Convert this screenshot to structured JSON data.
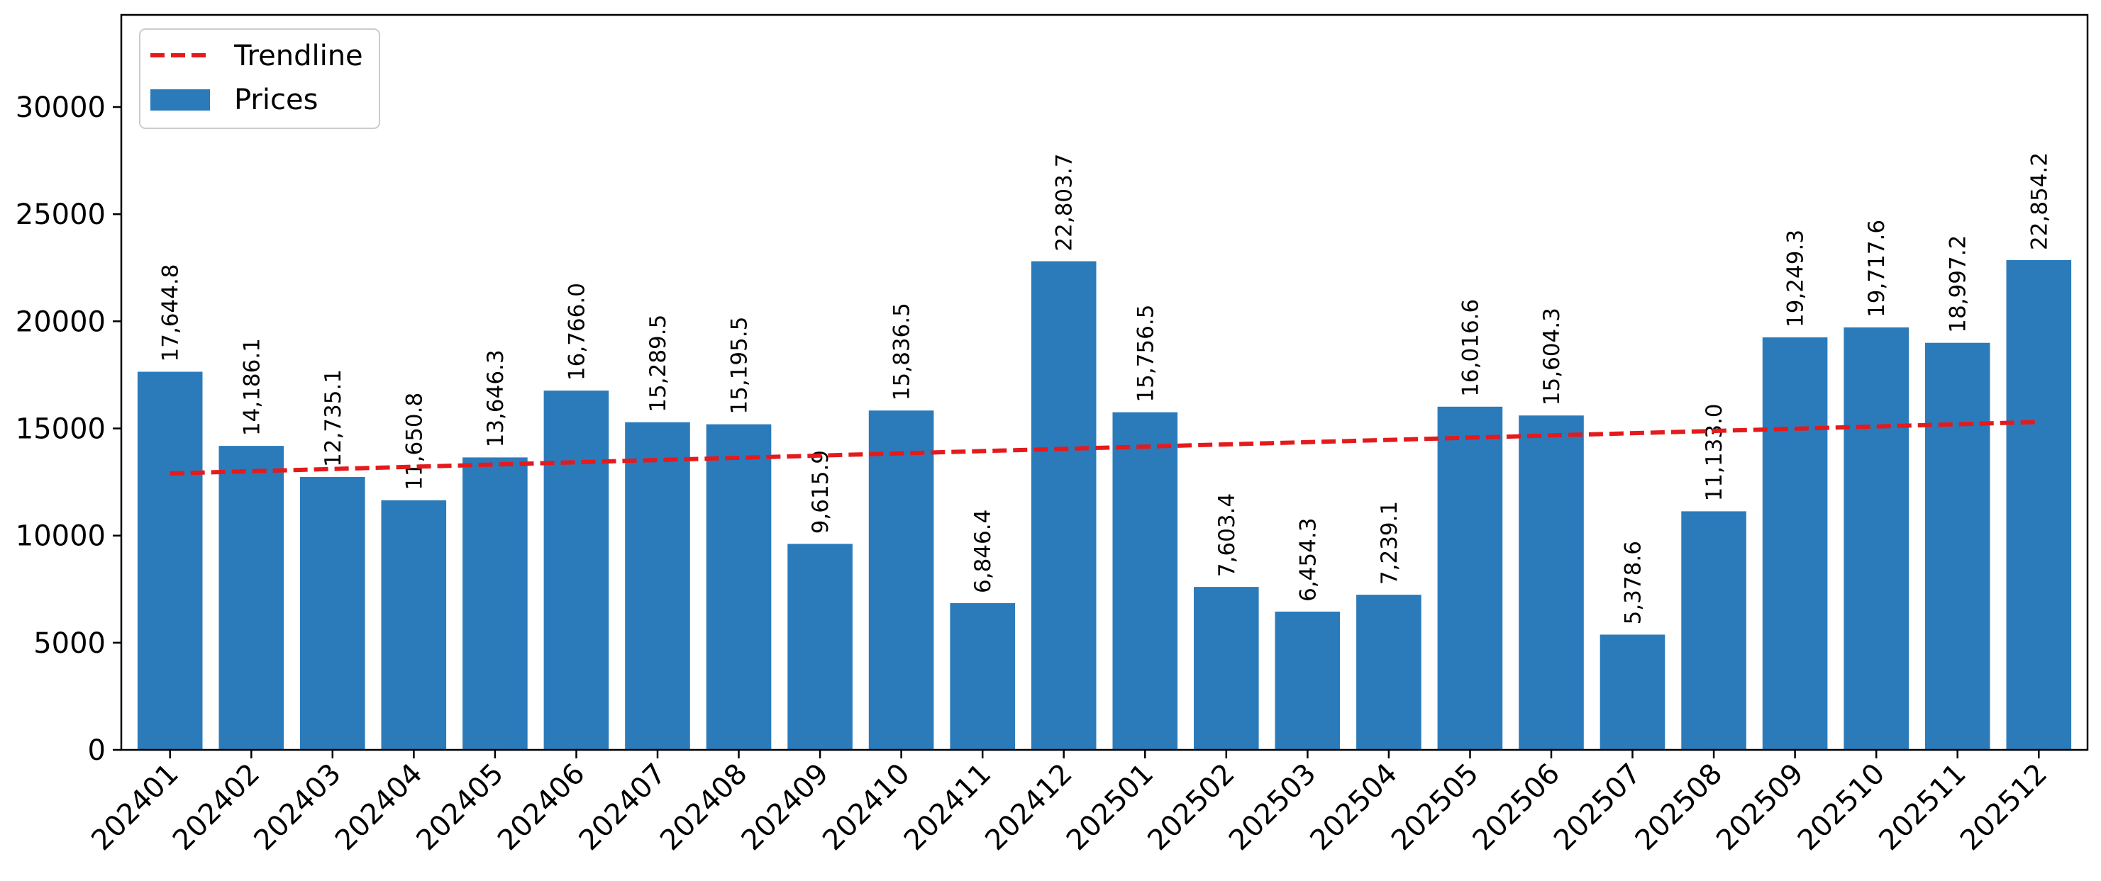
{
  "chart_data": {
    "type": "bar",
    "title": "",
    "xlabel": "",
    "ylabel": "",
    "categories": [
      "202401",
      "202402",
      "202403",
      "202404",
      "202405",
      "202406",
      "202407",
      "202408",
      "202409",
      "202410",
      "202411",
      "202412",
      "202501",
      "202502",
      "202503",
      "202504",
      "202505",
      "202506",
      "202507",
      "202508",
      "202509",
      "202510",
      "202511",
      "202512"
    ],
    "series": [
      {
        "name": "Prices",
        "type": "bar",
        "color": "#2b7bba",
        "values": [
          17644.8,
          14186.1,
          12735.1,
          11650.8,
          13646.3,
          16766.0,
          15289.5,
          15195.5,
          9615.9,
          15836.5,
          6846.4,
          22803.7,
          15756.5,
          7603.4,
          6454.3,
          7239.1,
          16016.6,
          15604.3,
          5378.6,
          11133.0,
          19249.3,
          19717.6,
          18997.2,
          22854.2
        ],
        "value_labels": [
          "17,644.8",
          "14,186.1",
          "12,735.1",
          "11,650.8",
          "13,646.3",
          "16,766.0",
          "15,289.5",
          "15,195.5",
          "9,615.9",
          "15,836.5",
          "6,846.4",
          "22,803.7",
          "15,756.5",
          "7,603.4",
          "6,454.3",
          "7,239.1",
          "16,016.6",
          "15,604.3",
          "5,378.6",
          "11,133.0",
          "19,249.3",
          "19,717.6",
          "18,997.2",
          "22,854.2"
        ]
      },
      {
        "name": "Trendline",
        "type": "line",
        "style": "dashed",
        "color": "#e41a1c",
        "start": 12900,
        "end": 15300
      }
    ],
    "y_ticks": [
      "0",
      "5000",
      "10000",
      "15000",
      "20000",
      "25000",
      "30000"
    ],
    "ylim": [
      0,
      34300
    ],
    "grid": false,
    "legend_position": "top-left"
  }
}
